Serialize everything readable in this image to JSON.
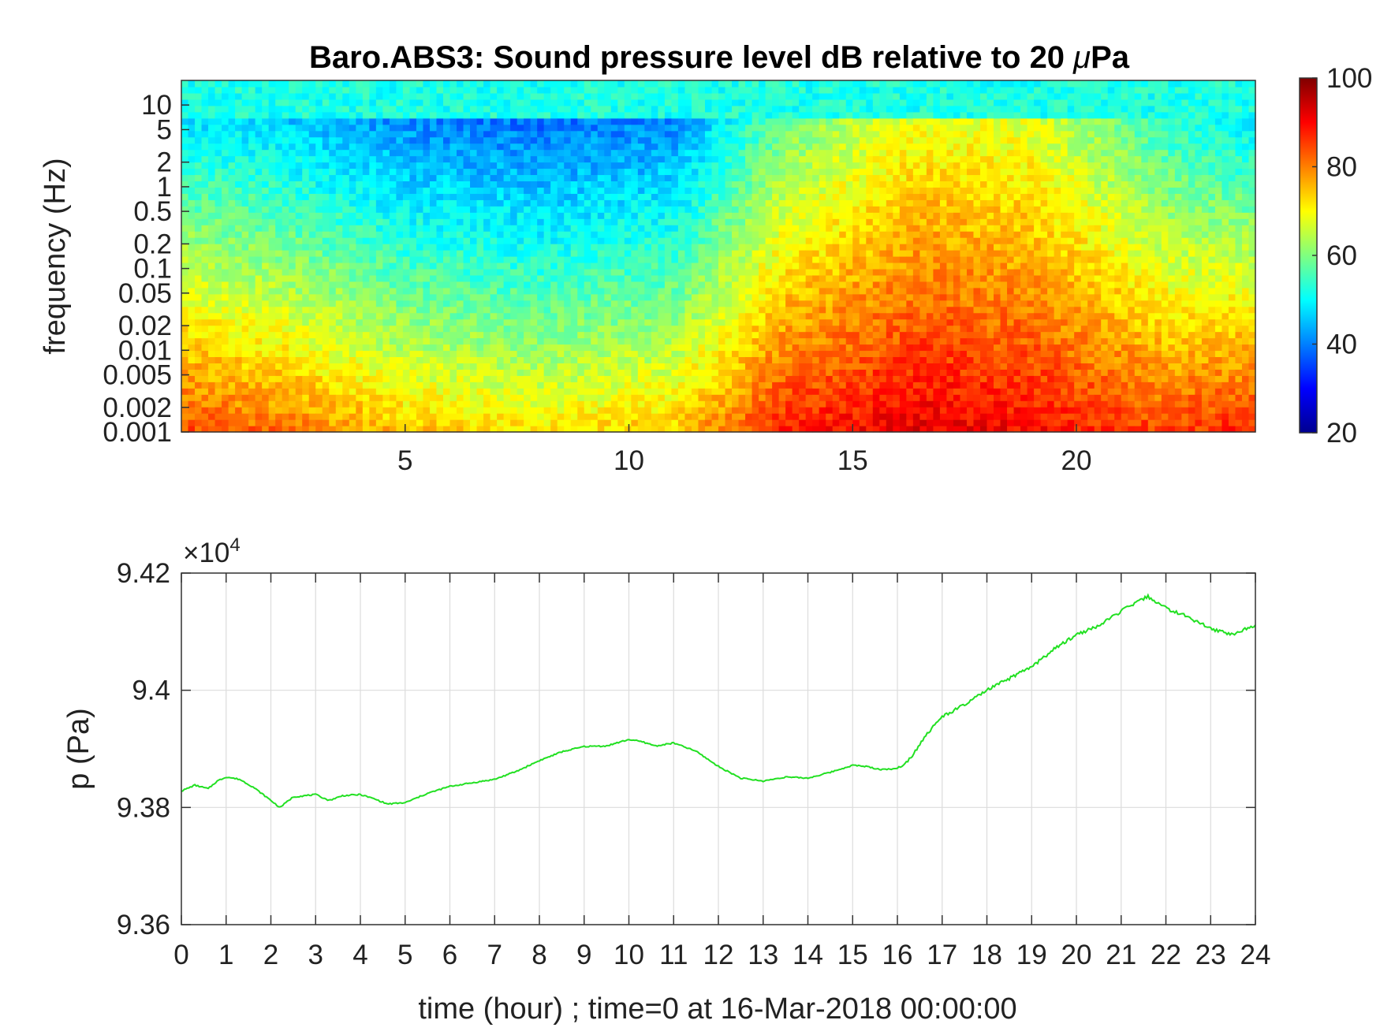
{
  "chart_data": [
    {
      "type": "heatmap",
      "title_prefix": "Baro.ABS3: Sound pressure level dB relative to 20 ",
      "title_mu": "μ",
      "title_suffix": "Pa",
      "xlabel": "",
      "ylabel": "frequency (Hz)",
      "xlim": [
        0,
        24
      ],
      "x_ticks": [
        5,
        10,
        15,
        20
      ],
      "y_scale": "log",
      "ylim": [
        0.001,
        20
      ],
      "y_ticks": [
        {
          "value": 10,
          "label": "10"
        },
        {
          "value": 5,
          "label": "5"
        },
        {
          "value": 2,
          "label": "2"
        },
        {
          "value": 1,
          "label": "1"
        },
        {
          "value": 0.5,
          "label": "0.5"
        },
        {
          "value": 0.2,
          "label": "0.2"
        },
        {
          "value": 0.1,
          "label": "0.1"
        },
        {
          "value": 0.05,
          "label": "0.05"
        },
        {
          "value": 0.02,
          "label": "0.02"
        },
        {
          "value": 0.01,
          "label": "0.01"
        },
        {
          "value": 0.005,
          "label": "0.005"
        },
        {
          "value": 0.002,
          "label": "0.002"
        },
        {
          "value": 0.001,
          "label": "0.001"
        }
      ],
      "colormap": "jet",
      "clim": [
        20,
        100
      ],
      "colorbar_ticks": [
        "100",
        "80",
        "60",
        "40",
        "20"
      ],
      "colorbar_values": [
        100,
        80,
        60,
        40,
        20
      ],
      "approx_level_by_hour": [
        {
          "hour": 0,
          "high_f_db": 50,
          "low_f_db": 85
        },
        {
          "hour": 2,
          "high_f_db": 48,
          "low_f_db": 82
        },
        {
          "hour": 5,
          "high_f_db": 42,
          "low_f_db": 75
        },
        {
          "hour": 8,
          "high_f_db": 40,
          "low_f_db": 72
        },
        {
          "hour": 11,
          "high_f_db": 42,
          "low_f_db": 75
        },
        {
          "hour": 13.5,
          "high_f_db": 60,
          "low_f_db": 88
        },
        {
          "hour": 16.5,
          "high_f_db": 70,
          "low_f_db": 92
        },
        {
          "hour": 19,
          "high_f_db": 68,
          "low_f_db": 90
        },
        {
          "hour": 22,
          "high_f_db": 55,
          "low_f_db": 85
        },
        {
          "hour": 24,
          "high_f_db": 50,
          "low_f_db": 88
        }
      ]
    },
    {
      "type": "line",
      "xlabel": "time (hour) ; time=0 at 16-Mar-2018 00:00:00",
      "ylabel": "p (Pa)",
      "exponent_base": "×10",
      "exponent_power": "4",
      "xlim": [
        0,
        24
      ],
      "ylim": [
        9.36,
        9.42
      ],
      "x_ticks": [
        "0",
        "1",
        "2",
        "3",
        "4",
        "5",
        "6",
        "7",
        "8",
        "9",
        "10",
        "11",
        "12",
        "13",
        "14",
        "15",
        "16",
        "17",
        "18",
        "19",
        "20",
        "21",
        "22",
        "23",
        "24"
      ],
      "y_ticks": [
        "9.42",
        "9.4",
        "9.38",
        "9.36"
      ],
      "y_tick_values": [
        9.42,
        9.4,
        9.38,
        9.36
      ],
      "grid": true,
      "line_color": "#22e022",
      "series": [
        {
          "x": [
            0,
            0.3,
            0.6,
            0.8,
            1.0,
            1.3,
            1.6,
            2.0,
            2.2,
            2.5,
            3.0,
            3.3,
            3.6,
            4.0,
            4.3,
            4.6,
            5.0,
            5.5,
            6.0,
            6.5,
            7.0,
            7.5,
            8.0,
            8.5,
            9.0,
            9.5,
            10.0,
            10.3,
            10.6,
            11.0,
            11.5,
            12.0,
            12.5,
            13.0,
            13.5,
            14.0,
            14.5,
            15.0,
            15.3,
            15.6,
            16.0,
            16.3,
            16.6,
            17.0,
            17.5,
            18.0,
            18.5,
            19.0,
            19.5,
            20.0,
            20.5,
            21.0,
            21.3,
            21.6,
            22.0,
            22.5,
            23.0,
            23.5,
            24.0
          ],
          "y": [
            9.3828,
            9.3838,
            9.3832,
            9.3845,
            9.3852,
            9.3848,
            9.3835,
            9.3812,
            9.38,
            9.3818,
            9.3822,
            9.3812,
            9.382,
            9.3822,
            9.3815,
            9.3806,
            9.3808,
            9.3824,
            9.3836,
            9.3842,
            9.3848,
            9.3862,
            9.388,
            9.3895,
            9.3904,
            9.3905,
            9.3916,
            9.3912,
            9.3905,
            9.391,
            9.3896,
            9.387,
            9.385,
            9.3845,
            9.3852,
            9.385,
            9.386,
            9.3872,
            9.387,
            9.3865,
            9.3866,
            9.3885,
            9.392,
            9.3955,
            9.3975,
            9.4,
            9.402,
            9.404,
            9.407,
            9.4095,
            9.411,
            9.4135,
            9.4148,
            9.416,
            9.414,
            9.4125,
            9.4105,
            9.4095,
            9.4112
          ]
        }
      ]
    }
  ]
}
